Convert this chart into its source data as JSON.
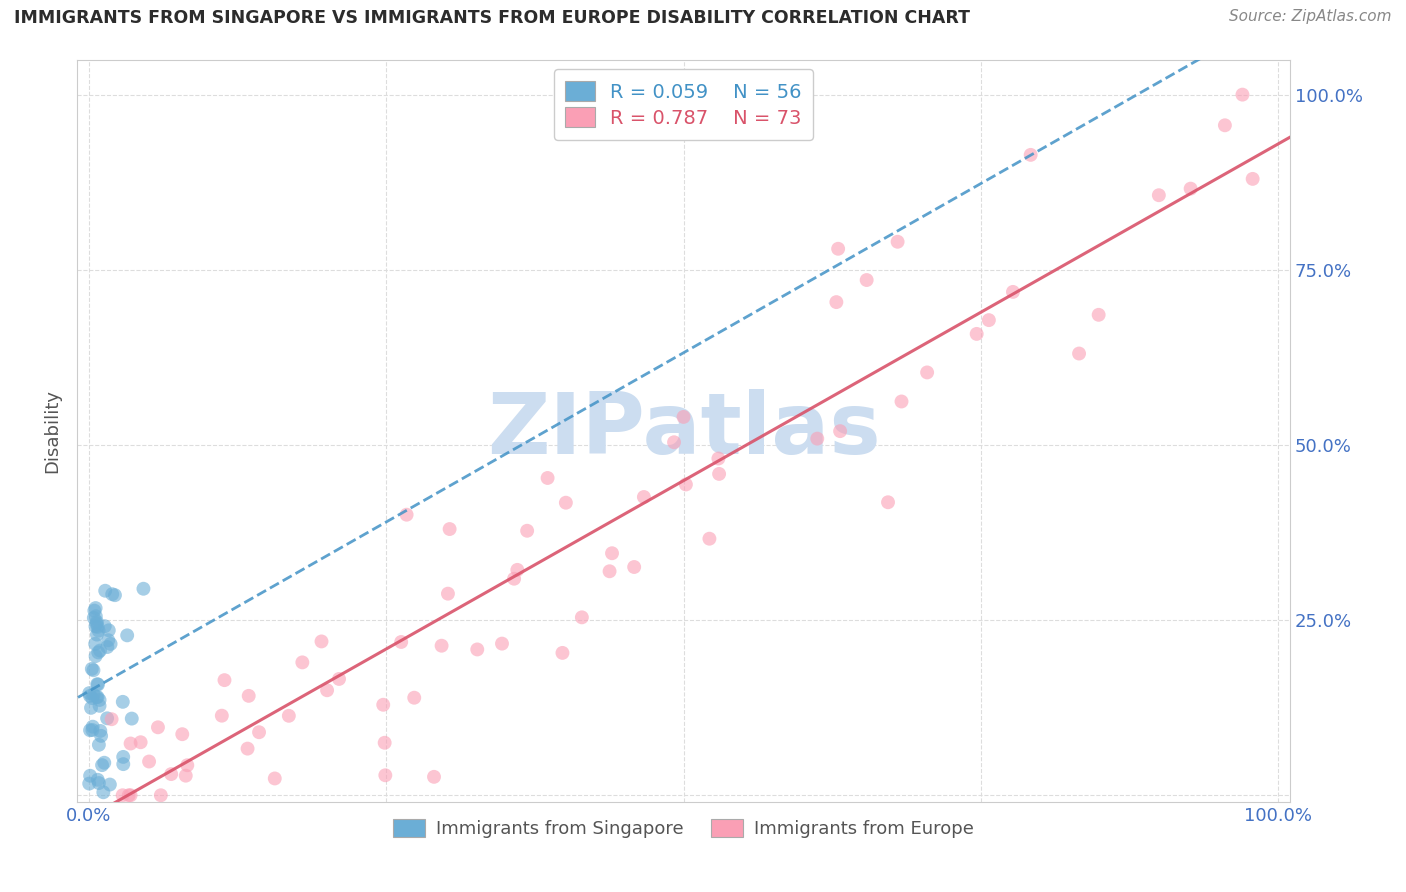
{
  "title": "IMMIGRANTS FROM SINGAPORE VS IMMIGRANTS FROM EUROPE DISABILITY CORRELATION CHART",
  "source": "Source: ZipAtlas.com",
  "ylabel": "Disability",
  "R_singapore": 0.059,
  "N_singapore": 56,
  "R_europe": 0.787,
  "N_europe": 73,
  "color_singapore": "#6baed6",
  "color_europe": "#fa9fb5",
  "trendline_singapore_color": "#4292c6",
  "trendline_europe_color": "#d9536a",
  "watermark": "ZIPatlas",
  "watermark_color": "#ccddf0",
  "background_color": "#ffffff",
  "grid_color": "#dddddd",
  "title_color": "#2c2c2c",
  "axis_tick_color": "#4472c4",
  "legend_text_sg_color": "#4292c6",
  "legend_text_eu_color": "#d9536a"
}
